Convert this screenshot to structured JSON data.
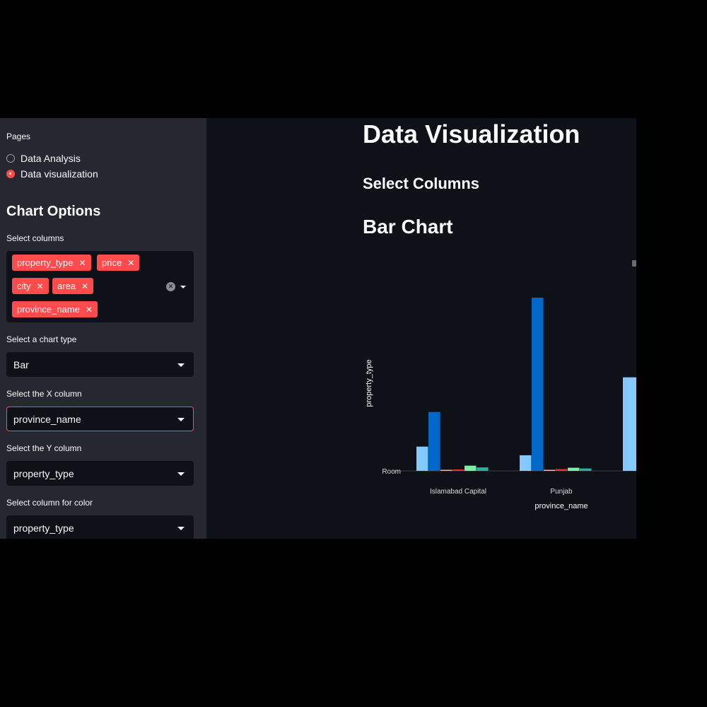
{
  "sidebar": {
    "pages_label": "Pages",
    "pages": [
      {
        "label": "Data Analysis",
        "selected": false
      },
      {
        "label": "Data visualization",
        "selected": true
      }
    ],
    "chart_options_title": "Chart Options",
    "select_columns_label": "Select columns",
    "selected_columns": [
      "property_type",
      "price",
      "city",
      "area",
      "province_name"
    ],
    "chart_type_label": "Select a chart type",
    "chart_type_value": "Bar",
    "x_column_label": "Select the X column",
    "x_column_value": "province_name",
    "y_column_label": "Select the Y column",
    "y_column_value": "property_type",
    "color_column_label": "Select column for color",
    "color_column_value": "property_type"
  },
  "main": {
    "title": "Data Visualization",
    "select_columns_heading": "Select Columns",
    "chart_heading": "Bar Chart"
  },
  "icons": {
    "tag_remove": "close-icon",
    "clear_all": "clear-circle-icon",
    "dropdown": "chevron-down-icon",
    "radio": "radio-icon"
  },
  "colors": {
    "accent": "#ff4b4b",
    "sidebar_bg": "#262730",
    "main_bg": "#0e1117",
    "bar_colors": [
      "#83c9ff",
      "#0068c9",
      "#ffabab",
      "#ff2b2b",
      "#7defa1",
      "#29b09d"
    ]
  },
  "chart_data": {
    "type": "bar",
    "categories": [
      "Islamabad Capital",
      "Punjab"
    ],
    "series": [
      {
        "values": [
          0.14,
          0.09
        ]
      },
      {
        "values": [
          0.34,
          1.0
        ]
      },
      {
        "values": [
          0.004,
          0.004
        ]
      },
      {
        "values": [
          0.008,
          0.01
        ]
      },
      {
        "values": [
          0.03,
          0.018
        ]
      },
      {
        "values": [
          0.02,
          0.014
        ]
      }
    ],
    "partial_visible_bars": [
      {
        "series": 0,
        "value": 0.54
      }
    ],
    "xlabel": "province_name",
    "ylabel": "property_type",
    "y_tick_labels": [
      "Room"
    ],
    "grid": false,
    "legend": "none"
  }
}
